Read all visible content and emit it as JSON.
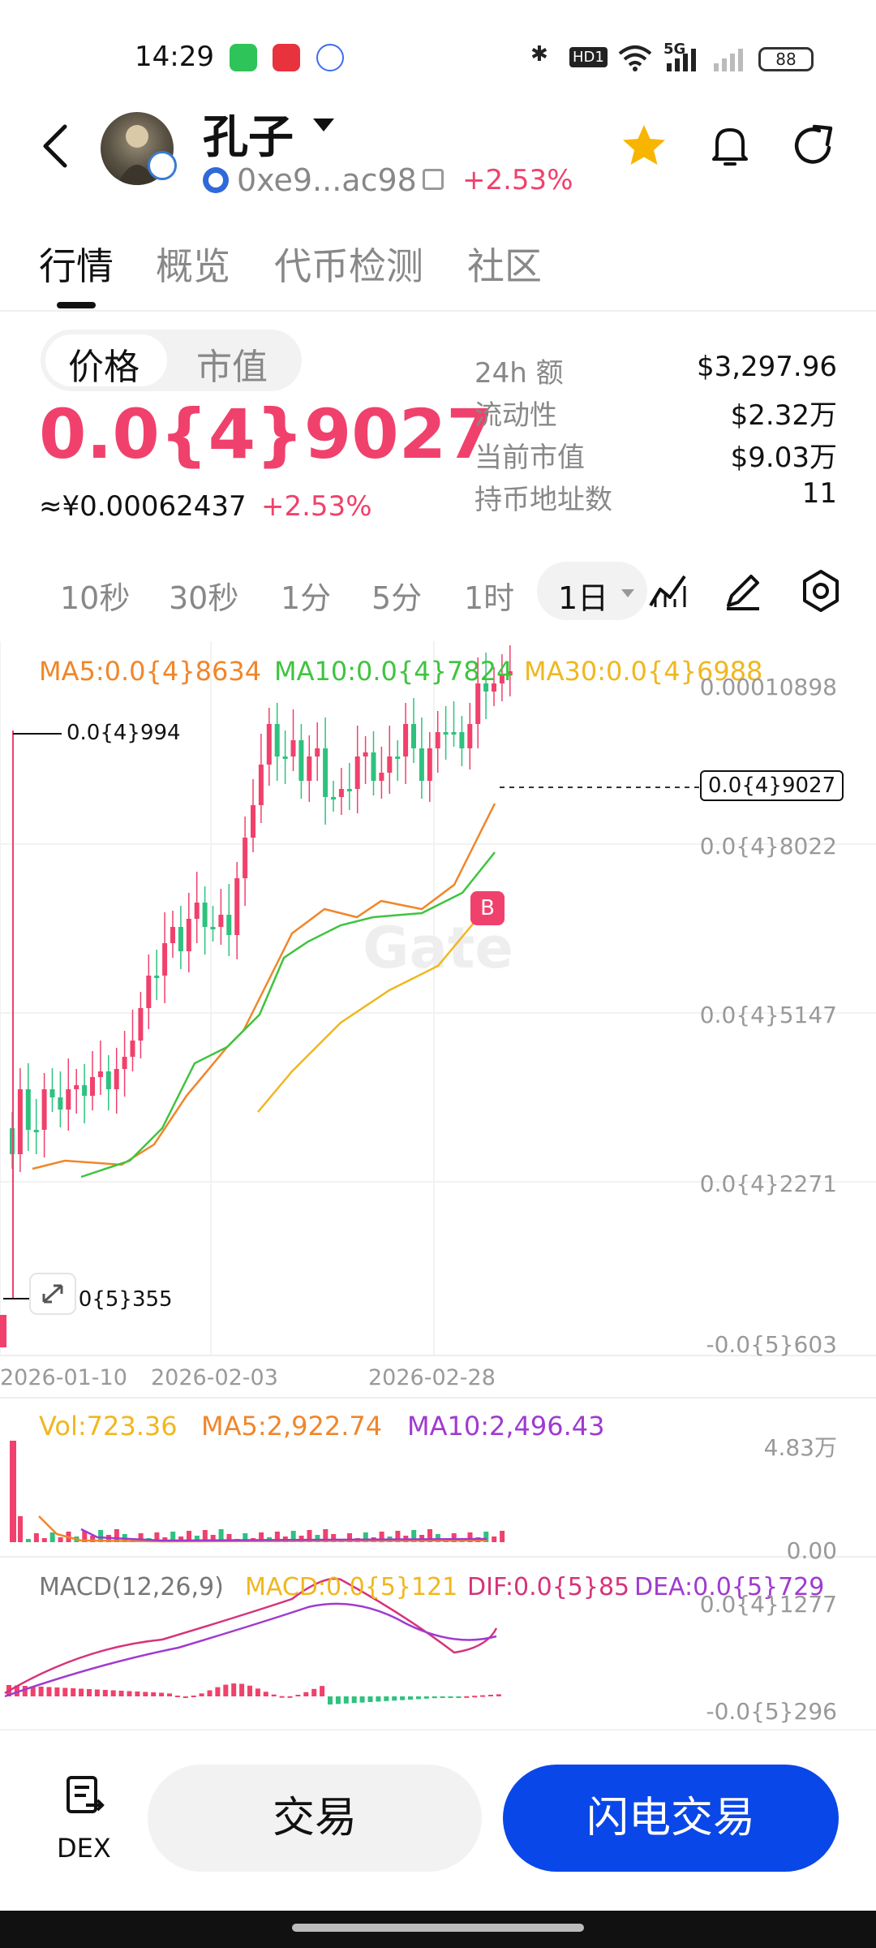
{
  "status_bar": {
    "time": "14:29",
    "network": "5G",
    "hd": "HD1",
    "battery": "88"
  },
  "header": {
    "token_name": "孔子",
    "address": "0xe9...ac98",
    "change": "+2.53%"
  },
  "tabs": [
    {
      "label": "行情",
      "active": true
    },
    {
      "label": "概览",
      "active": false
    },
    {
      "label": "代币检测",
      "active": false
    },
    {
      "label": "社区",
      "active": false
    }
  ],
  "price_panel": {
    "toggle": [
      "价格",
      "市值"
    ],
    "price": "0.0{4}9027",
    "cny_price": "≈¥0.00062437",
    "change": "+2.53%",
    "stats": [
      {
        "label": "24h  额",
        "value": "$3,297.96"
      },
      {
        "label": "流动性",
        "value": "$2.32万"
      },
      {
        "label": "当前市值",
        "value": "$9.03万"
      },
      {
        "label": "持币地址数",
        "value": "11"
      }
    ]
  },
  "timeframes": [
    "10秒",
    "30秒",
    "1分",
    "5分",
    "1时",
    "1日"
  ],
  "active_timeframe": "1日",
  "chart": {
    "ma_legend": [
      {
        "text": "MA5:0.0{4}8634",
        "color": "#f0862a"
      },
      {
        "text": "MA10:0.0{4}7824",
        "color": "#3fc43f"
      },
      {
        "text": "MA30:0.0{4}6988",
        "color": "#f0b71e"
      }
    ],
    "y_ticks": [
      "0.00010898",
      "0.0{4}8022",
      "0.0{4}5147",
      "0.0{4}2271",
      "-0.0{5}603"
    ],
    "high_label": "0.0{4}994",
    "low_label": "0.0{5}355",
    "last_price": "0.0{4}9027",
    "buy_marker": "B",
    "dates": [
      "2026-01-10",
      "2026-02-03",
      "2026-02-28"
    ],
    "watermark": "Gate"
  },
  "volume": {
    "legend": [
      {
        "text": "Vol:723.36",
        "color": "#f0b71e"
      },
      {
        "text": "MA5:2,922.74",
        "color": "#f0862a"
      },
      {
        "text": "MA10:2,496.43",
        "color": "#a03ad0"
      }
    ],
    "y_ticks": [
      "4.83万",
      "0.00"
    ]
  },
  "macd": {
    "legend": [
      {
        "text": "MACD(12,26,9)",
        "color": "#777777"
      },
      {
        "text": "MACD:0.0{5}121",
        "color": "#f0b71e"
      },
      {
        "text": "DIF:0.0{5}85",
        "color": "#d6337a"
      },
      {
        "text": "DEA:0.0{5}729",
        "color": "#a03ad0"
      }
    ],
    "y_ticks": [
      "0.0{4}1277",
      "-0.0{5}296"
    ]
  },
  "bottom": {
    "dex_label": "DEX",
    "trade_label": "交易",
    "flash_label": "闪电交易"
  },
  "colors": {
    "up": "#f0416c",
    "down": "#2ec27e",
    "accent": "#0a47e8"
  }
}
